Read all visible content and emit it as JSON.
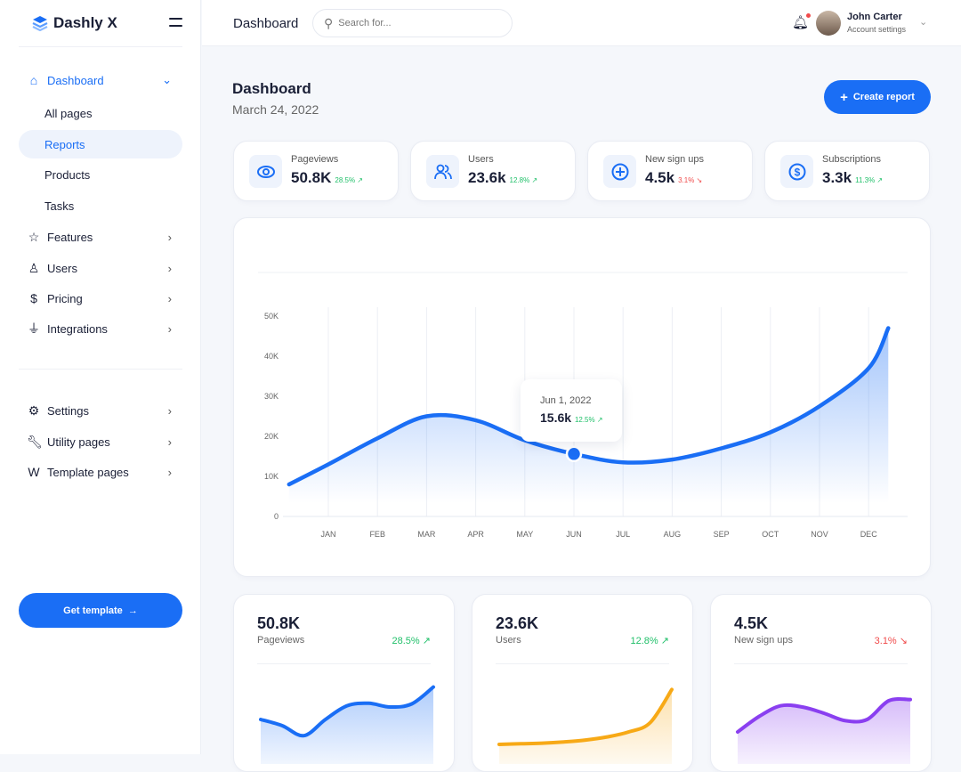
{
  "brand": {
    "name": "Dashly X"
  },
  "sidebar": {
    "items": [
      {
        "label": "Dashboard",
        "icon": "home-icon"
      },
      {
        "label": "All pages"
      },
      {
        "label": "Reports"
      },
      {
        "label": "Products"
      },
      {
        "label": "Tasks"
      },
      {
        "label": "Features",
        "icon": "star-icon"
      },
      {
        "label": "Users",
        "icon": "user-icon"
      },
      {
        "label": "Pricing",
        "icon": "dollar-icon"
      },
      {
        "label": "Integrations",
        "icon": "plug-icon"
      }
    ],
    "bottom_items": [
      {
        "label": "Settings",
        "icon": "gear-icon"
      },
      {
        "label": "Utility pages",
        "icon": "wrench-icon"
      },
      {
        "label": "Template pages",
        "icon": "template-icon"
      }
    ],
    "cta": "Get template"
  },
  "topbar": {
    "title": "Dashboard",
    "search_placeholder": "Search for...",
    "user_name": "John Carter",
    "user_sub": "Account settings"
  },
  "page": {
    "title": "Dashboard",
    "date": "March 24, 2022",
    "create_button": "Create report"
  },
  "stats": [
    {
      "label": "Pageviews",
      "value": "50.8K",
      "change": "28.5%",
      "trend": "up",
      "icon": "eye-icon"
    },
    {
      "label": "Users",
      "value": "23.6k",
      "change": "12.8%",
      "trend": "up",
      "icon": "users-icon"
    },
    {
      "label": "New sign ups",
      "value": "4.5k",
      "change": "3.1%",
      "trend": "down",
      "icon": "plus-circle-icon"
    },
    {
      "label": "Subscriptions",
      "value": "3.3k",
      "change": "11.3%",
      "trend": "up",
      "icon": "dollar-circle-icon"
    }
  ],
  "chart_data": {
    "type": "area",
    "categories": [
      "JAN",
      "FEB",
      "MAR",
      "APR",
      "MAY",
      "JUN",
      "JUL",
      "AUG",
      "SEP",
      "OCT",
      "NOV",
      "DEC"
    ],
    "y_ticks": [
      "0",
      "10K",
      "20K",
      "30K",
      "40K",
      "50K"
    ],
    "ylim": [
      0,
      50000
    ],
    "series": [
      {
        "name": "Pageviews",
        "x": [
          -0.8,
          0,
          1,
          2,
          3,
          4,
          5,
          6,
          7,
          8,
          9,
          10,
          11,
          11.4
        ],
        "values": [
          8000,
          13000,
          19500,
          25000,
          24000,
          19000,
          15600,
          13500,
          14200,
          17000,
          21000,
          27500,
          37000,
          47000
        ]
      }
    ],
    "tooltip": {
      "date": "Jun 1, 2022",
      "value": "15.6k",
      "change": "12.5%"
    },
    "grid": true
  },
  "mini_cards": [
    {
      "value": "50.8K",
      "label": "Pageviews",
      "change": "28.5%",
      "trend": "up",
      "color": "#1a6ef5",
      "spark": [
        40,
        30,
        14,
        40,
        62,
        66,
        60,
        65,
        92
      ]
    },
    {
      "value": "23.6K",
      "label": "Users",
      "change": "12.8%",
      "trend": "up",
      "color": "#f7a916",
      "spark": [
        0,
        1,
        2,
        4,
        7,
        12,
        20,
        35,
        88
      ]
    },
    {
      "value": "4.5K",
      "label": "New sign ups",
      "change": "3.1%",
      "trend": "down",
      "color": "#8a3ff0",
      "spark": [
        20,
        45,
        62,
        60,
        50,
        38,
        40,
        70,
        72
      ]
    }
  ]
}
